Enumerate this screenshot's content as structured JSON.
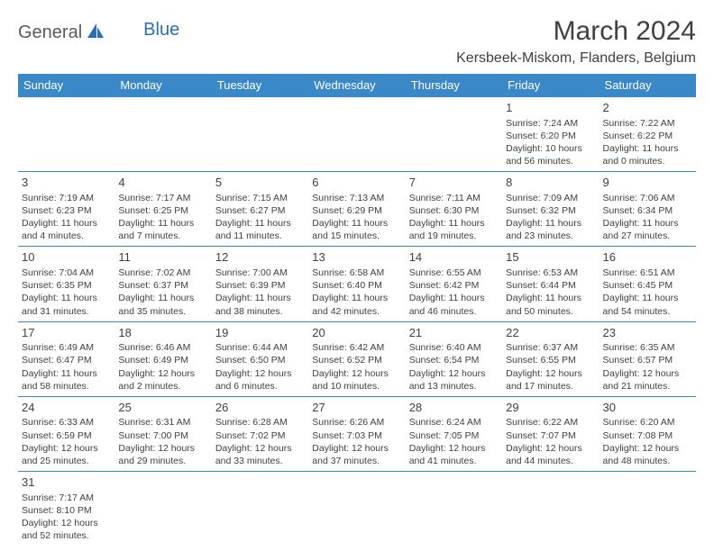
{
  "logo": {
    "part1": "General",
    "part2": "Blue"
  },
  "title": "March 2024",
  "location": "Kersbeek-Miskom, Flanders, Belgium",
  "colors": {
    "header_bg": "#3b88c8",
    "header_text": "#ffffff",
    "border": "#3b88c8",
    "logo_gray": "#5a5a5a",
    "logo_blue": "#2a6fb5",
    "text": "#404040"
  },
  "weekdays": [
    "Sunday",
    "Monday",
    "Tuesday",
    "Wednesday",
    "Thursday",
    "Friday",
    "Saturday"
  ],
  "weeks": [
    [
      null,
      null,
      null,
      null,
      null,
      {
        "n": "1",
        "sr": "Sunrise: 7:24 AM",
        "ss": "Sunset: 6:20 PM",
        "dl": "Daylight: 10 hours and 56 minutes."
      },
      {
        "n": "2",
        "sr": "Sunrise: 7:22 AM",
        "ss": "Sunset: 6:22 PM",
        "dl": "Daylight: 11 hours and 0 minutes."
      }
    ],
    [
      {
        "n": "3",
        "sr": "Sunrise: 7:19 AM",
        "ss": "Sunset: 6:23 PM",
        "dl": "Daylight: 11 hours and 4 minutes."
      },
      {
        "n": "4",
        "sr": "Sunrise: 7:17 AM",
        "ss": "Sunset: 6:25 PM",
        "dl": "Daylight: 11 hours and 7 minutes."
      },
      {
        "n": "5",
        "sr": "Sunrise: 7:15 AM",
        "ss": "Sunset: 6:27 PM",
        "dl": "Daylight: 11 hours and 11 minutes."
      },
      {
        "n": "6",
        "sr": "Sunrise: 7:13 AM",
        "ss": "Sunset: 6:29 PM",
        "dl": "Daylight: 11 hours and 15 minutes."
      },
      {
        "n": "7",
        "sr": "Sunrise: 7:11 AM",
        "ss": "Sunset: 6:30 PM",
        "dl": "Daylight: 11 hours and 19 minutes."
      },
      {
        "n": "8",
        "sr": "Sunrise: 7:09 AM",
        "ss": "Sunset: 6:32 PM",
        "dl": "Daylight: 11 hours and 23 minutes."
      },
      {
        "n": "9",
        "sr": "Sunrise: 7:06 AM",
        "ss": "Sunset: 6:34 PM",
        "dl": "Daylight: 11 hours and 27 minutes."
      }
    ],
    [
      {
        "n": "10",
        "sr": "Sunrise: 7:04 AM",
        "ss": "Sunset: 6:35 PM",
        "dl": "Daylight: 11 hours and 31 minutes."
      },
      {
        "n": "11",
        "sr": "Sunrise: 7:02 AM",
        "ss": "Sunset: 6:37 PM",
        "dl": "Daylight: 11 hours and 35 minutes."
      },
      {
        "n": "12",
        "sr": "Sunrise: 7:00 AM",
        "ss": "Sunset: 6:39 PM",
        "dl": "Daylight: 11 hours and 38 minutes."
      },
      {
        "n": "13",
        "sr": "Sunrise: 6:58 AM",
        "ss": "Sunset: 6:40 PM",
        "dl": "Daylight: 11 hours and 42 minutes."
      },
      {
        "n": "14",
        "sr": "Sunrise: 6:55 AM",
        "ss": "Sunset: 6:42 PM",
        "dl": "Daylight: 11 hours and 46 minutes."
      },
      {
        "n": "15",
        "sr": "Sunrise: 6:53 AM",
        "ss": "Sunset: 6:44 PM",
        "dl": "Daylight: 11 hours and 50 minutes."
      },
      {
        "n": "16",
        "sr": "Sunrise: 6:51 AM",
        "ss": "Sunset: 6:45 PM",
        "dl": "Daylight: 11 hours and 54 minutes."
      }
    ],
    [
      {
        "n": "17",
        "sr": "Sunrise: 6:49 AM",
        "ss": "Sunset: 6:47 PM",
        "dl": "Daylight: 11 hours and 58 minutes."
      },
      {
        "n": "18",
        "sr": "Sunrise: 6:46 AM",
        "ss": "Sunset: 6:49 PM",
        "dl": "Daylight: 12 hours and 2 minutes."
      },
      {
        "n": "19",
        "sr": "Sunrise: 6:44 AM",
        "ss": "Sunset: 6:50 PM",
        "dl": "Daylight: 12 hours and 6 minutes."
      },
      {
        "n": "20",
        "sr": "Sunrise: 6:42 AM",
        "ss": "Sunset: 6:52 PM",
        "dl": "Daylight: 12 hours and 10 minutes."
      },
      {
        "n": "21",
        "sr": "Sunrise: 6:40 AM",
        "ss": "Sunset: 6:54 PM",
        "dl": "Daylight: 12 hours and 13 minutes."
      },
      {
        "n": "22",
        "sr": "Sunrise: 6:37 AM",
        "ss": "Sunset: 6:55 PM",
        "dl": "Daylight: 12 hours and 17 minutes."
      },
      {
        "n": "23",
        "sr": "Sunrise: 6:35 AM",
        "ss": "Sunset: 6:57 PM",
        "dl": "Daylight: 12 hours and 21 minutes."
      }
    ],
    [
      {
        "n": "24",
        "sr": "Sunrise: 6:33 AM",
        "ss": "Sunset: 6:59 PM",
        "dl": "Daylight: 12 hours and 25 minutes."
      },
      {
        "n": "25",
        "sr": "Sunrise: 6:31 AM",
        "ss": "Sunset: 7:00 PM",
        "dl": "Daylight: 12 hours and 29 minutes."
      },
      {
        "n": "26",
        "sr": "Sunrise: 6:28 AM",
        "ss": "Sunset: 7:02 PM",
        "dl": "Daylight: 12 hours and 33 minutes."
      },
      {
        "n": "27",
        "sr": "Sunrise: 6:26 AM",
        "ss": "Sunset: 7:03 PM",
        "dl": "Daylight: 12 hours and 37 minutes."
      },
      {
        "n": "28",
        "sr": "Sunrise: 6:24 AM",
        "ss": "Sunset: 7:05 PM",
        "dl": "Daylight: 12 hours and 41 minutes."
      },
      {
        "n": "29",
        "sr": "Sunrise: 6:22 AM",
        "ss": "Sunset: 7:07 PM",
        "dl": "Daylight: 12 hours and 44 minutes."
      },
      {
        "n": "30",
        "sr": "Sunrise: 6:20 AM",
        "ss": "Sunset: 7:08 PM",
        "dl": "Daylight: 12 hours and 48 minutes."
      }
    ],
    [
      {
        "n": "31",
        "sr": "Sunrise: 7:17 AM",
        "ss": "Sunset: 8:10 PM",
        "dl": "Daylight: 12 hours and 52 minutes."
      },
      null,
      null,
      null,
      null,
      null,
      null
    ]
  ]
}
